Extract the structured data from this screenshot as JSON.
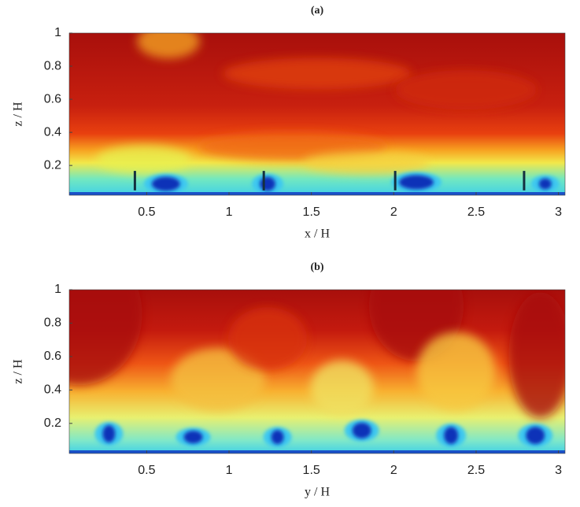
{
  "chart_data": [
    {
      "type": "heatmap",
      "title": "(a)",
      "xlabel": "x / H",
      "ylabel": "z / H",
      "xlim": [
        0.03,
        3.04
      ],
      "ylim": [
        0.02,
        1
      ],
      "xticks": [
        0.5,
        1,
        1.5,
        2,
        2.5,
        3
      ],
      "yticks": [
        0.2,
        0.4,
        0.6,
        0.8,
        1
      ]
    },
    {
      "type": "heatmap",
      "title": "(b)",
      "xlabel": "y / H",
      "ylabel": "z / H",
      "xlim": [
        0.03,
        3.04
      ],
      "ylim": [
        0.02,
        1
      ],
      "xticks": [
        0.5,
        1,
        1.5,
        2,
        2.5,
        3
      ],
      "yticks": [
        0.2,
        0.4,
        0.6,
        0.8,
        1
      ]
    }
  ]
}
